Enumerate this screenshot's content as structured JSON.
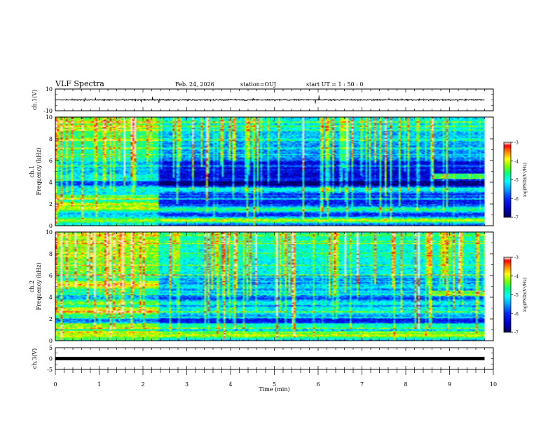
{
  "header": {
    "title": "VLF Spectra",
    "date": "Feb. 24, 2026",
    "station": "station=OUJ",
    "start": "start  UT =   1 : 50 : 0"
  },
  "colors": {
    "bg": "#ffffff",
    "ink": "#000000",
    "colormap": [
      "#000080",
      "#0000ff",
      "#00aaff",
      "#00ffff",
      "#00ff80",
      "#80ff00",
      "#ffff00",
      "#ff8000",
      "#ff0000",
      "#ffffff"
    ]
  },
  "chart_data": [
    {
      "type": "line",
      "name": "ch1-waveform",
      "ylabel": "ch.1(V)",
      "xlim": [
        0,
        10
      ],
      "ylim": [
        -10,
        10
      ],
      "yticks": [
        "10",
        "-10"
      ],
      "data_extent_min": 9.8,
      "signal": "noisy trace around 0 V, amplitude about ±1 V"
    },
    {
      "type": "heatmap",
      "name": "ch1-spectrogram",
      "ylabel_line1": "ch.1",
      "ylabel_line2": "Frequency  (kHz)",
      "xlim": [
        0,
        10
      ],
      "ylim": [
        0,
        10
      ],
      "yticks": [
        "0",
        "2",
        "4",
        "6",
        "8",
        "10"
      ],
      "colorbar": {
        "label": "log(PSD)(V²/Hz)",
        "range": [
          -7,
          -3
        ],
        "ticks": [
          "-3",
          "-4",
          "-5",
          "-6",
          "-7"
        ]
      },
      "regime_change_min": 2.35,
      "bands_before_change_khz": [
        {
          "f": 0.5,
          "level": -4.2
        },
        {
          "f": 1.6,
          "level": -4.0
        },
        {
          "f": 2.0,
          "level": -4.1
        },
        {
          "f": 2.6,
          "level": -4.6
        },
        {
          "f": 3.3,
          "level": -5.0
        },
        {
          "f": 4.5,
          "level": -5.0
        }
      ],
      "bands_after_change_khz": [
        {
          "f": 0.5,
          "level": -4.0
        },
        {
          "f": 1.5,
          "level": -4.6
        },
        {
          "f": 3.3,
          "level": -5.0
        },
        {
          "f": 4.5,
          "level": -6.5
        }
      ]
    },
    {
      "type": "heatmap",
      "name": "ch2-spectrogram",
      "ylabel_line1": "ch.2",
      "ylabel_line2": "Frequency  (kHz)",
      "xlim": [
        0,
        10
      ],
      "ylim": [
        0,
        10
      ],
      "yticks": [
        "0",
        "2",
        "4",
        "6",
        "8",
        "10"
      ],
      "colorbar": {
        "label": "log(PSD)(V²/Hz)",
        "range": [
          -7,
          -3
        ],
        "ticks": [
          "-3",
          "-4",
          "-5",
          "-6",
          "-7"
        ]
      },
      "regime_change_min": 2.35,
      "bands_before_change_khz": [
        {
          "f": 0.5,
          "level": -4.0
        },
        {
          "f": 1.3,
          "level": -4.2
        },
        {
          "f": 2.7,
          "level": -3.8
        },
        {
          "f": 5.2,
          "level": -3.9
        }
      ],
      "bands_after_change_khz": [
        {
          "f": 0.5,
          "level": -4.0
        },
        {
          "f": 1.3,
          "level": -4.8
        },
        {
          "f": 2.7,
          "level": -5.0
        },
        {
          "f": 4.3,
          "level": -5.3
        }
      ]
    },
    {
      "type": "line",
      "name": "ch3-waveform",
      "ylabel": "ch.3(V)",
      "xlabel": "Time  (min)",
      "xlim": [
        0,
        10
      ],
      "ylim": [
        -5,
        5
      ],
      "yticks": [
        "5",
        "0",
        "-5"
      ],
      "xticks": [
        "0",
        "1",
        "2",
        "3",
        "4",
        "5",
        "6",
        "7",
        "8",
        "9",
        "10"
      ],
      "data_extent_min": 9.8,
      "signal": "flat thick trace near 0 V"
    }
  ]
}
